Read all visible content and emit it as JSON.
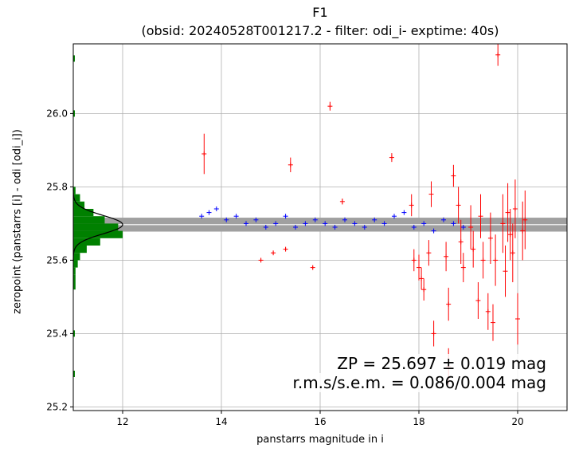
{
  "chart_data": {
    "type": "scatter",
    "title": "F1",
    "subtitle": "(obsid: 20240528T001217.2 - filter: odi_i- exptime: 40s)",
    "xlabel": "panstarrs magnitude in i",
    "ylabel": "zeropoint (panstarrs [i] - odi [odi_i])",
    "xlim": [
      11.0,
      21.0
    ],
    "ylim": [
      25.19,
      26.19
    ],
    "xticks": [
      12,
      14,
      16,
      18,
      20
    ],
    "yticks": [
      25.2,
      25.4,
      25.6,
      25.8,
      26.0
    ],
    "grid": true,
    "zeropoint": 25.697,
    "zp_error": 0.019,
    "sem": 0.004,
    "annotations": [
      "ZP = 25.697 ± 0.019 mag",
      "r.m.s/s.e.m. = 0.086/0.004 mag"
    ],
    "series": [
      {
        "color": "#0000ff",
        "marker": "plus",
        "x": [
          13.6,
          13.75,
          13.9,
          14.1,
          14.3,
          14.5,
          14.7,
          14.9,
          15.1,
          15.3,
          15.5,
          15.7,
          15.9,
          16.1,
          16.3,
          16.5,
          16.7,
          16.9,
          17.1,
          17.3,
          17.5,
          17.7,
          17.9,
          18.1,
          18.3,
          18.5,
          18.7,
          18.9
        ],
        "y": [
          25.72,
          25.73,
          25.74,
          25.71,
          25.72,
          25.7,
          25.71,
          25.69,
          25.7,
          25.72,
          25.69,
          25.7,
          25.71,
          25.7,
          25.69,
          25.71,
          25.7,
          25.69,
          25.71,
          25.7,
          25.72,
          25.73,
          25.69,
          25.7,
          25.68,
          25.71,
          25.7,
          25.69
        ]
      },
      {
        "color": "#ff0000",
        "marker": "plus-errorbar",
        "x": [
          13.65,
          14.8,
          15.05,
          15.3,
          15.4,
          15.85,
          16.2,
          16.45,
          17.45,
          17.85,
          17.9,
          18.0,
          18.05,
          18.1,
          18.2,
          18.25,
          18.3,
          18.55,
          18.6,
          18.7,
          18.8,
          18.9,
          19.1,
          19.2,
          19.3,
          19.4,
          19.5,
          19.6,
          19.7,
          19.8,
          19.9,
          20.0,
          20.1,
          18.6,
          18.85,
          19.05,
          19.25,
          19.45,
          19.55,
          19.75,
          19.85,
          19.95,
          20.15
        ],
        "y": [
          25.89,
          25.6,
          25.62,
          25.63,
          25.86,
          25.58,
          26.02,
          25.76,
          25.88,
          25.75,
          25.6,
          25.58,
          25.55,
          25.52,
          25.62,
          25.78,
          25.4,
          25.61,
          25.48,
          25.83,
          25.75,
          25.58,
          25.63,
          25.49,
          25.6,
          25.46,
          25.43,
          26.16,
          25.7,
          25.73,
          25.62,
          25.44,
          25.68,
          25.31,
          25.65,
          25.69,
          25.72,
          25.66,
          25.6,
          25.57,
          25.67,
          25.74,
          25.71
        ],
        "yerr": [
          0.055,
          0.004,
          0.004,
          0.004,
          0.02,
          0.004,
          0.012,
          0.008,
          0.012,
          0.03,
          0.03,
          0.035,
          0.03,
          0.03,
          0.035,
          0.035,
          0.035,
          0.04,
          0.045,
          0.03,
          0.05,
          0.04,
          0.05,
          0.05,
          0.05,
          0.05,
          0.05,
          0.03,
          0.08,
          0.08,
          0.08,
          0.07,
          0.08,
          0.05,
          0.06,
          0.06,
          0.06,
          0.07,
          0.07,
          0.07,
          0.07,
          0.08,
          0.08
        ]
      }
    ],
    "histogram": {
      "color": "#008000",
      "bin_edges": [
        25.52,
        25.54,
        25.56,
        25.58,
        25.6,
        25.62,
        25.64,
        25.66,
        25.68,
        25.7,
        25.72,
        25.74,
        25.76,
        25.78,
        25.8
      ],
      "counts": [
        1,
        1,
        1,
        2,
        3,
        6,
        12,
        22,
        20,
        14,
        9,
        5,
        3,
        1
      ],
      "max_extent_x": 12.0,
      "outliers_y": [
        26.15,
        26.0,
        25.4,
        25.29
      ]
    },
    "gaussian": {
      "color": "#000000",
      "mean": 25.697,
      "sigma": 0.025,
      "peak_x": 12.0
    }
  }
}
